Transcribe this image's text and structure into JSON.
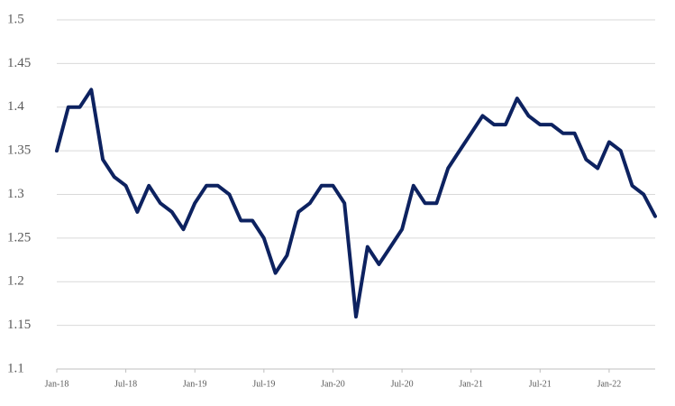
{
  "chart_data": {
    "type": "line",
    "categories": [
      "Jan-18",
      null,
      null,
      null,
      null,
      null,
      "Jul-18",
      null,
      null,
      null,
      null,
      null,
      "Jan-19",
      null,
      null,
      null,
      null,
      null,
      "Jul-19",
      null,
      null,
      null,
      null,
      null,
      "Jan-20",
      null,
      null,
      null,
      null,
      null,
      "Jul-20",
      null,
      null,
      null,
      null,
      null,
      "Jan-21",
      null,
      null,
      null,
      null,
      null,
      "Jul-21",
      null,
      null,
      null,
      null,
      null,
      "Jan-22",
      null,
      null,
      null,
      null
    ],
    "series": [
      {
        "color": "#0d2260",
        "values": [
          1.35,
          1.4,
          1.4,
          1.42,
          1.34,
          1.32,
          1.31,
          1.28,
          1.31,
          1.29,
          1.28,
          1.26,
          1.29,
          1.31,
          1.31,
          1.3,
          1.27,
          1.27,
          1.25,
          1.21,
          1.23,
          1.28,
          1.29,
          1.31,
          1.31,
          1.29,
          1.16,
          1.24,
          1.22,
          1.24,
          1.26,
          1.31,
          1.29,
          1.29,
          1.33,
          1.35,
          1.37,
          1.39,
          1.38,
          1.38,
          1.41,
          1.39,
          1.38,
          1.38,
          1.37,
          1.37,
          1.34,
          1.33,
          1.36,
          1.35,
          1.31,
          1.3,
          1.275
        ]
      }
    ],
    "ylim": [
      1.1,
      1.5
    ],
    "yticks": [
      1.1,
      1.15,
      1.2,
      1.25,
      1.3,
      1.35,
      1.4,
      1.45,
      1.5
    ],
    "grid": true
  }
}
